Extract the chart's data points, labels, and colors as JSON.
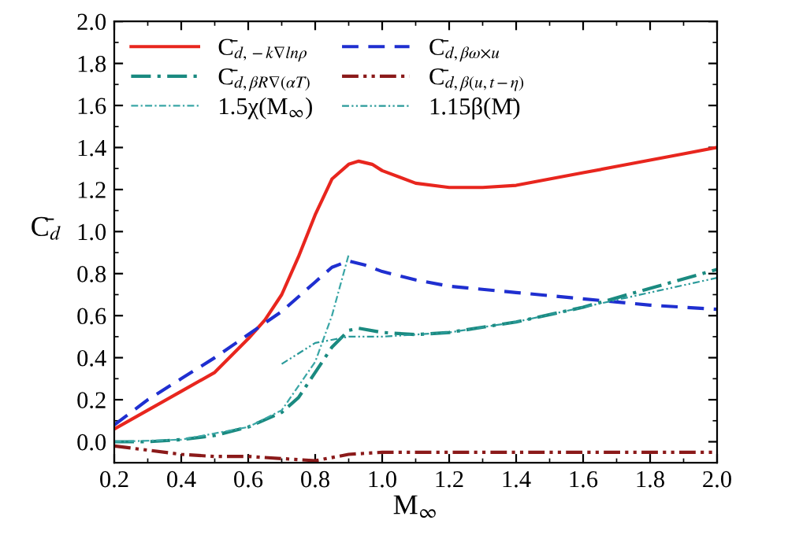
{
  "chart_data": {
    "type": "line",
    "xlabel": "M$_{∞}$",
    "ylabel": "C̄$_{d}$",
    "xlim": [
      0.2,
      2.0
    ],
    "ylim": [
      -0.1,
      2.0
    ],
    "xticks": [
      0.2,
      0.4,
      0.6,
      0.8,
      {
        "value": 1,
        "label": "1.0"
      },
      1.2,
      1.4,
      1.6,
      1.8,
      {
        "value": 2,
        "label": "2.0"
      }
    ],
    "yticks": [
      {
        "value": 0,
        "label": "0.0"
      },
      0.2,
      0.4,
      0.6,
      0.8,
      {
        "value": 1,
        "label": "1.0"
      },
      1.2,
      1.4,
      1.6,
      1.8,
      {
        "value": 2,
        "label": "2.0"
      }
    ],
    "grid": false,
    "legend": "top left",
    "series": [
      {
        "name": "C̄$_{d,−k∇lnρ}$",
        "color": "#e8261e",
        "line_style": "solid",
        "x": [
          0.2,
          0.3,
          0.4,
          0.5,
          0.6,
          0.65,
          0.7,
          0.75,
          0.8,
          0.85,
          0.9,
          0.93,
          0.97,
          1.0,
          1.1,
          1.2,
          1.3,
          1.4,
          1.5,
          1.6,
          1.7,
          1.8,
          1.9,
          2.0
        ],
        "values": [
          0.06,
          0.15,
          0.24,
          0.33,
          0.49,
          0.58,
          0.7,
          0.88,
          1.08,
          1.25,
          1.32,
          1.335,
          1.32,
          1.29,
          1.23,
          1.21,
          1.21,
          1.22,
          1.25,
          1.28,
          1.31,
          1.34,
          1.37,
          1.4
        ]
      },
      {
        "name": "C̄$_{d,βω×u}$",
        "color": "#1f2fd0",
        "line_style": "dashed",
        "x": [
          0.2,
          0.3,
          0.4,
          0.5,
          0.6,
          0.7,
          0.8,
          0.85,
          0.9,
          0.95,
          1.0,
          1.1,
          1.2,
          1.4,
          1.6,
          1.8,
          2.0
        ],
        "values": [
          0.08,
          0.2,
          0.3,
          0.4,
          0.51,
          0.62,
          0.76,
          0.83,
          0.86,
          0.84,
          0.81,
          0.77,
          0.74,
          0.71,
          0.68,
          0.65,
          0.63
        ]
      },
      {
        "name": "C̄$_{d,βR∇(αT)}$",
        "color": "#1a8a80",
        "line_style": "dashdot",
        "x": [
          0.2,
          0.3,
          0.4,
          0.5,
          0.6,
          0.7,
          0.75,
          0.8,
          0.85,
          0.9,
          0.93,
          1.0,
          1.1,
          1.2,
          1.4,
          1.6,
          1.8,
          2.0
        ],
        "values": [
          0.0,
          0.0,
          0.01,
          0.03,
          0.07,
          0.14,
          0.21,
          0.33,
          0.45,
          0.53,
          0.54,
          0.52,
          0.51,
          0.52,
          0.57,
          0.64,
          0.73,
          0.82
        ]
      },
      {
        "name": "C̄$_{d,β(u,t−η)}$",
        "color": "#8b1a1a",
        "line_style": "dashdotdot",
        "x": [
          0.2,
          0.3,
          0.4,
          0.5,
          0.6,
          0.7,
          0.8,
          0.9,
          1.0,
          1.2,
          1.6,
          2.0
        ],
        "values": [
          -0.02,
          -0.04,
          -0.06,
          -0.07,
          -0.07,
          -0.08,
          -0.09,
          -0.06,
          -0.05,
          -0.05,
          -0.05,
          -0.05
        ]
      },
      {
        "name": "1.5χ(M$_{∞}$)",
        "color": "#3aa6a6",
        "line_style": "thin_dashdot",
        "x": [
          0.2,
          0.4,
          0.6,
          0.7,
          0.8,
          0.85,
          0.9
        ],
        "values": [
          0.0,
          0.01,
          0.07,
          0.15,
          0.38,
          0.6,
          0.89
        ]
      },
      {
        "name": "1.15β(M̄)",
        "color": "#2a9a9a",
        "line_style": "thin_dashdotdot",
        "x": [
          0.7,
          0.8,
          0.9,
          1.0,
          1.2,
          1.4,
          1.6,
          1.8,
          2.0
        ],
        "values": [
          0.37,
          0.47,
          0.5,
          0.5,
          0.52,
          0.57,
          0.64,
          0.71,
          0.78
        ]
      }
    ]
  }
}
